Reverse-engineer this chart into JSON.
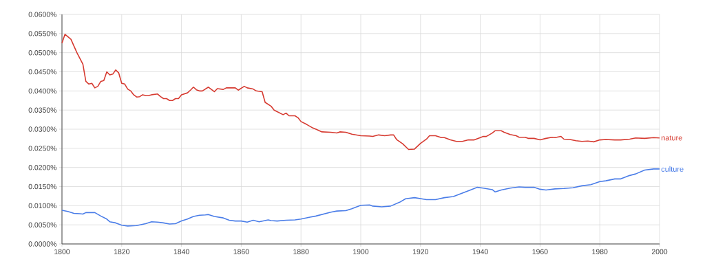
{
  "chart_data": {
    "type": "line",
    "xlim": [
      1800,
      2000
    ],
    "xticks": [
      1800,
      1820,
      1840,
      1860,
      1880,
      1900,
      1920,
      1940,
      1960,
      1980,
      2000
    ],
    "ylim": [
      0,
      0.06
    ],
    "yticks": [
      {
        "value": 0,
        "label": "0.0000%"
      },
      {
        "value": 0.005,
        "label": "0.0050%"
      },
      {
        "value": 0.01,
        "label": "0.0100%"
      },
      {
        "value": 0.015,
        "label": "0.0150%"
      },
      {
        "value": 0.02,
        "label": "0.0200%"
      },
      {
        "value": 0.025,
        "label": "0.0250%"
      },
      {
        "value": 0.03,
        "label": "0.0300%"
      },
      {
        "value": 0.035,
        "label": "0.0350%"
      },
      {
        "value": 0.04,
        "label": "0.0400%"
      },
      {
        "value": 0.045,
        "label": "0.0450%"
      },
      {
        "value": 0.05,
        "label": "0.0500%"
      },
      {
        "value": 0.055,
        "label": "0.0550%"
      },
      {
        "value": 0.06,
        "label": "0.0600%"
      }
    ],
    "grid": true,
    "marker": "none",
    "line_style": "solid",
    "series": [
      {
        "name": "nature",
        "color": "#d63a30",
        "x": [
          1800,
          1801,
          1803,
          1805,
          1807,
          1808,
          1809,
          1810,
          1811,
          1812,
          1813,
          1814,
          1815,
          1816,
          1817,
          1818,
          1819,
          1820,
          1821,
          1822,
          1823,
          1824,
          1825,
          1826,
          1827,
          1828,
          1829,
          1830,
          1832,
          1833,
          1834,
          1835,
          1836,
          1837,
          1838,
          1839,
          1840,
          1842,
          1843,
          1844,
          1845,
          1846,
          1847,
          1849,
          1851,
          1852,
          1854,
          1855,
          1858,
          1859,
          1861,
          1862,
          1864,
          1865,
          1867,
          1868,
          1870,
          1871,
          1873,
          1874,
          1875,
          1876,
          1878,
          1879,
          1880,
          1882,
          1884,
          1885,
          1887,
          1890,
          1892,
          1893,
          1895,
          1897,
          1900,
          1903,
          1904,
          1906,
          1908,
          1910,
          1911,
          1912,
          1914,
          1916,
          1918,
          1920,
          1922,
          1923,
          1925,
          1927,
          1928,
          1930,
          1932,
          1934,
          1936,
          1938,
          1940,
          1941,
          1942,
          1944,
          1945,
          1947,
          1948,
          1950,
          1952,
          1953,
          1955,
          1956,
          1958,
          1960,
          1962,
          1964,
          1965,
          1967,
          1968,
          1970,
          1972,
          1974,
          1976,
          1978,
          1980,
          1982,
          1985,
          1987,
          1990,
          1992,
          1995,
          1998,
          2000
        ],
        "values": [
          0.0525,
          0.0548,
          0.0535,
          0.05,
          0.047,
          0.0425,
          0.0418,
          0.042,
          0.0408,
          0.0412,
          0.0425,
          0.0427,
          0.045,
          0.0442,
          0.0444,
          0.0455,
          0.0447,
          0.042,
          0.0418,
          0.0405,
          0.04,
          0.039,
          0.0384,
          0.0385,
          0.039,
          0.0388,
          0.0388,
          0.039,
          0.0392,
          0.0385,
          0.038,
          0.038,
          0.0375,
          0.0375,
          0.038,
          0.038,
          0.039,
          0.0395,
          0.0402,
          0.041,
          0.0403,
          0.04,
          0.04,
          0.041,
          0.0398,
          0.0406,
          0.0404,
          0.0408,
          0.0408,
          0.0402,
          0.0412,
          0.0408,
          0.0405,
          0.04,
          0.0398,
          0.037,
          0.036,
          0.035,
          0.0342,
          0.0338,
          0.0342,
          0.0335,
          0.0335,
          0.033,
          0.032,
          0.0312,
          0.0303,
          0.03,
          0.0293,
          0.0292,
          0.029,
          0.0293,
          0.0292,
          0.0287,
          0.0283,
          0.0282,
          0.0281,
          0.0285,
          0.0283,
          0.0285,
          0.0285,
          0.0273,
          0.0262,
          0.0247,
          0.0248,
          0.0263,
          0.0274,
          0.0283,
          0.0283,
          0.0278,
          0.0278,
          0.0272,
          0.0268,
          0.0268,
          0.0272,
          0.0272,
          0.0278,
          0.0281,
          0.0281,
          0.029,
          0.0296,
          0.0296,
          0.0292,
          0.0286,
          0.0283,
          0.0279,
          0.0279,
          0.0276,
          0.0276,
          0.0272,
          0.0276,
          0.0279,
          0.0278,
          0.0281,
          0.0274,
          0.0273,
          0.027,
          0.0268,
          0.0269,
          0.0267,
          0.0272,
          0.0273,
          0.0272,
          0.0272,
          0.0274,
          0.0277,
          0.0276,
          0.0278,
          0.0277
        ]
      },
      {
        "name": "culture",
        "color": "#4a7de8",
        "x": [
          1800,
          1802,
          1804,
          1806,
          1807,
          1808,
          1810,
          1811,
          1813,
          1815,
          1816,
          1818,
          1820,
          1822,
          1825,
          1828,
          1830,
          1832,
          1834,
          1836,
          1838,
          1840,
          1842,
          1844,
          1846,
          1848,
          1849,
          1851,
          1854,
          1856,
          1858,
          1860,
          1862,
          1864,
          1866,
          1869,
          1870,
          1872,
          1875,
          1878,
          1880,
          1883,
          1885,
          1888,
          1890,
          1892,
          1895,
          1897,
          1900,
          1903,
          1904,
          1907,
          1910,
          1913,
          1915,
          1918,
          1922,
          1925,
          1928,
          1931,
          1934,
          1937,
          1939,
          1941,
          1944,
          1945,
          1947,
          1950,
          1953,
          1955,
          1958,
          1960,
          1962,
          1965,
          1968,
          1971,
          1974,
          1977,
          1980,
          1982,
          1985,
          1987,
          1990,
          1992,
          1995,
          1998,
          2000
        ],
        "values": [
          0.0088,
          0.0085,
          0.008,
          0.0079,
          0.0078,
          0.0082,
          0.0082,
          0.0082,
          0.0073,
          0.0065,
          0.0058,
          0.0055,
          0.0049,
          0.0047,
          0.0048,
          0.0053,
          0.0058,
          0.0057,
          0.0055,
          0.0052,
          0.0053,
          0.006,
          0.0065,
          0.0072,
          0.0075,
          0.0076,
          0.0077,
          0.0072,
          0.0068,
          0.0062,
          0.006,
          0.006,
          0.0057,
          0.0062,
          0.0058,
          0.0063,
          0.0061,
          0.006,
          0.0062,
          0.0063,
          0.0065,
          0.007,
          0.0073,
          0.0079,
          0.0083,
          0.0086,
          0.0087,
          0.0092,
          0.0101,
          0.0102,
          0.0099,
          0.0097,
          0.0099,
          0.0109,
          0.0118,
          0.0121,
          0.0116,
          0.0116,
          0.0121,
          0.0124,
          0.0133,
          0.0142,
          0.0148,
          0.0146,
          0.0142,
          0.0136,
          0.0141,
          0.0146,
          0.0149,
          0.0148,
          0.0148,
          0.0143,
          0.0141,
          0.0144,
          0.0145,
          0.0147,
          0.0152,
          0.0155,
          0.0163,
          0.0165,
          0.017,
          0.017,
          0.0179,
          0.0183,
          0.0193,
          0.0196,
          0.0196
        ]
      }
    ]
  }
}
